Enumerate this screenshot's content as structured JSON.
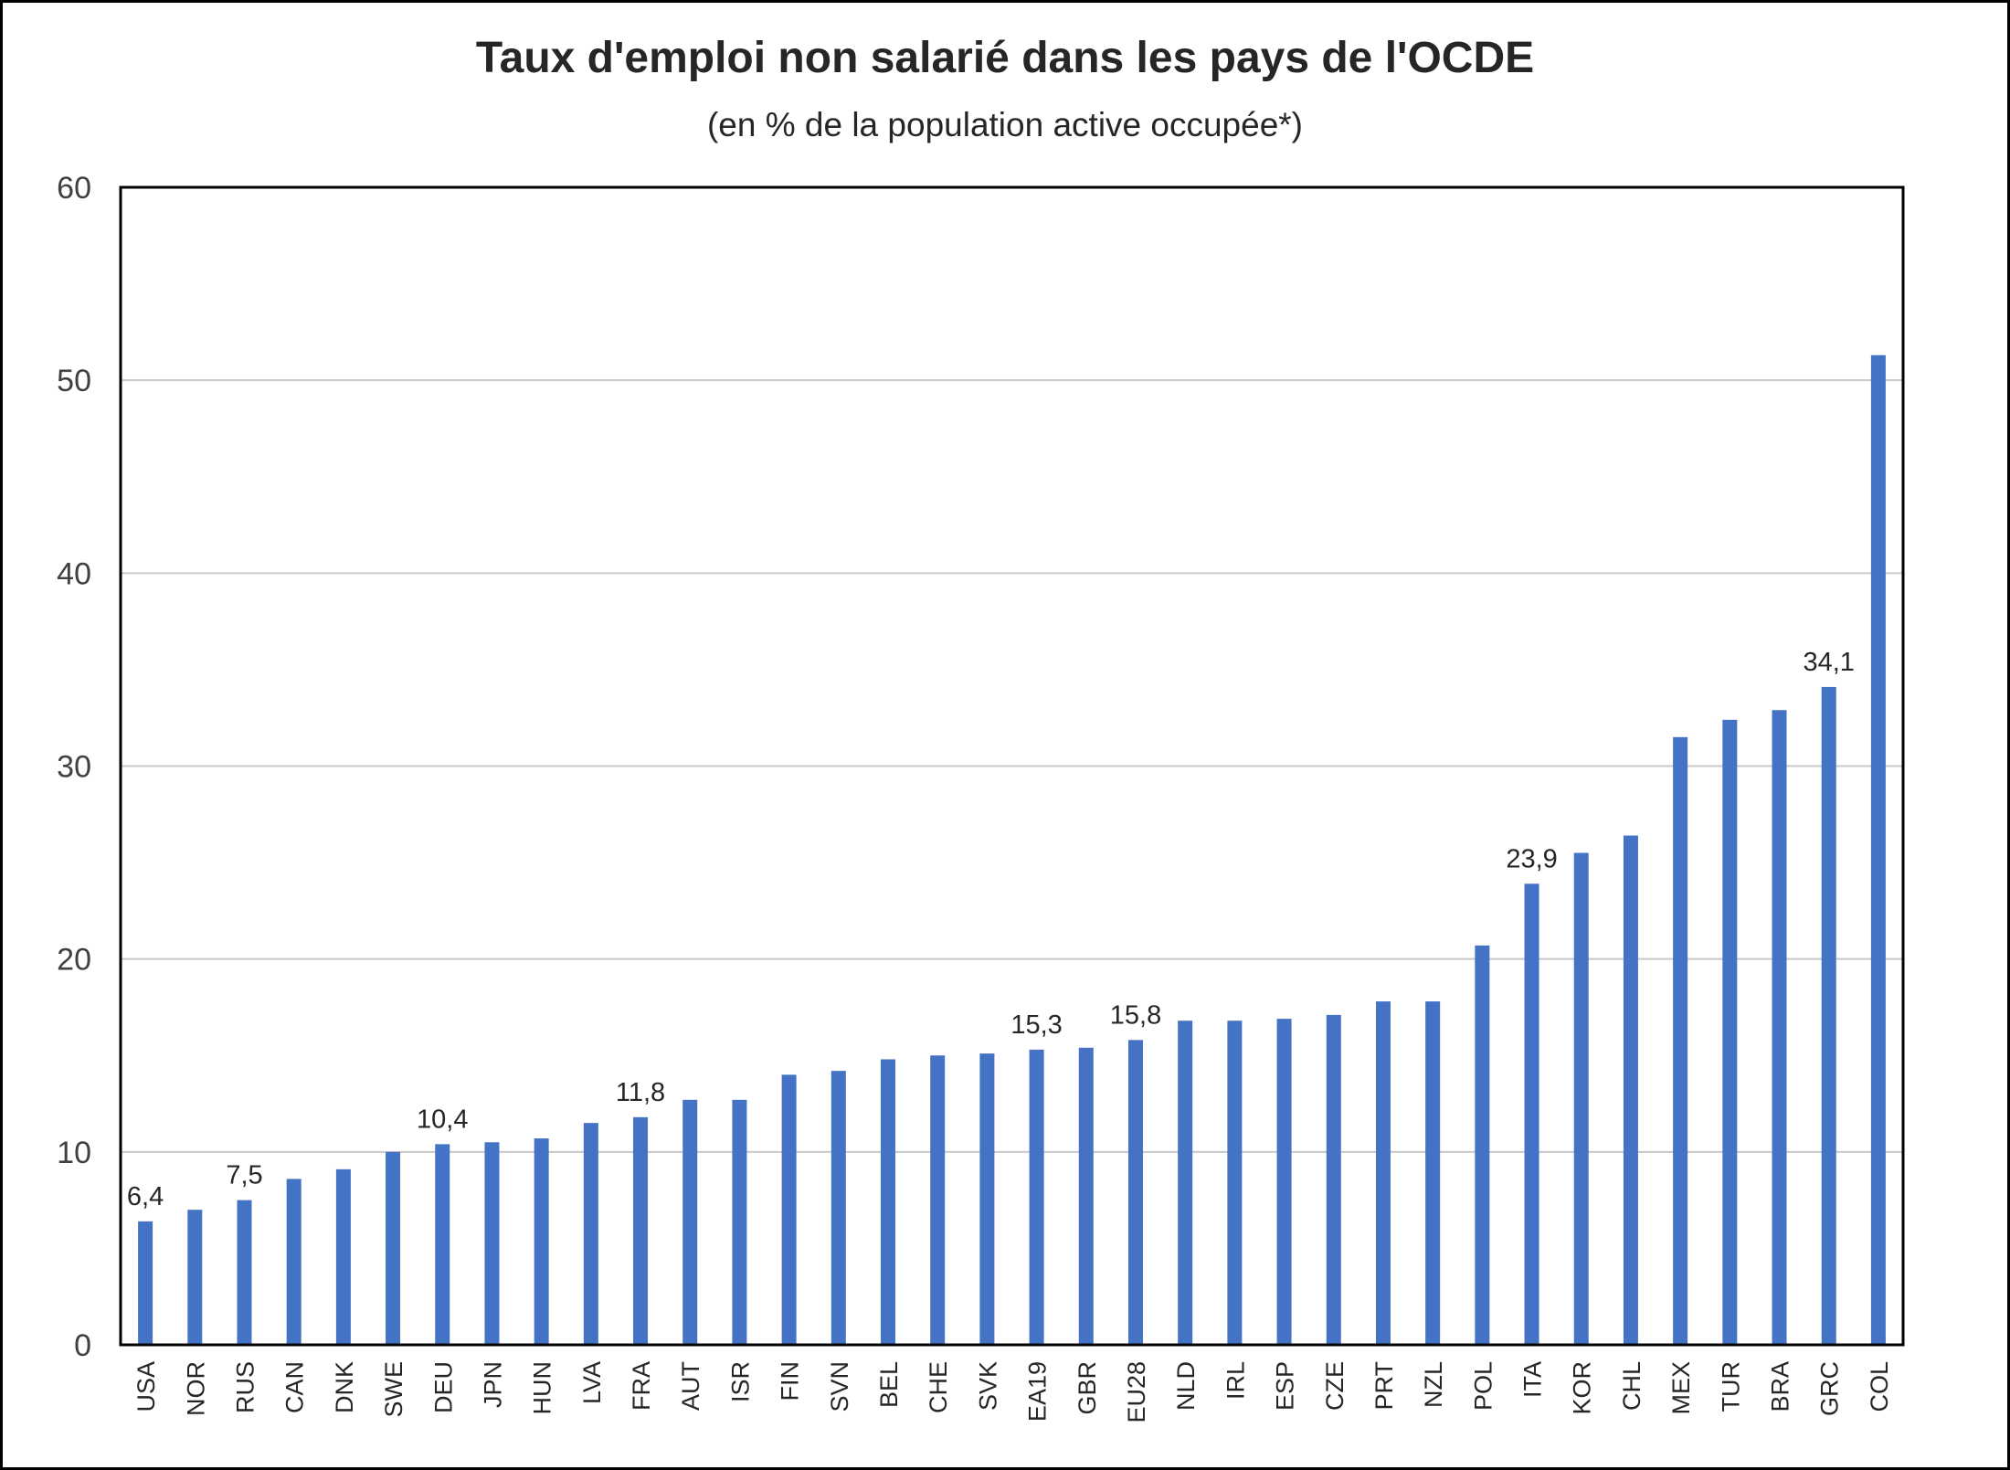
{
  "chart_data": {
    "type": "bar",
    "title": "Taux d'emploi non salarié dans les pays de l'OCDE",
    "subtitle": "(en % de la population active occupée*)",
    "xlabel": "",
    "ylabel": "",
    "ylim": [
      0,
      60
    ],
    "yticks": [
      "0",
      "10",
      "20",
      "30",
      "40",
      "50",
      "60"
    ],
    "grid": true,
    "bar_color": "#4472C4",
    "categories": [
      "USA",
      "NOR",
      "RUS",
      "CAN",
      "DNK",
      "SWE",
      "DEU",
      "JPN",
      "HUN",
      "LVA",
      "FRA",
      "AUT",
      "ISR",
      "FIN",
      "SVN",
      "BEL",
      "CHE",
      "SVK",
      "EA19",
      "GBR",
      "EU28",
      "NLD",
      "IRL",
      "ESP",
      "CZE",
      "PRT",
      "NZL",
      "POL",
      "ITA",
      "KOR",
      "CHL",
      "MEX",
      "TUR",
      "BRA",
      "GRC",
      "COL"
    ],
    "values": [
      6.4,
      7.0,
      7.5,
      8.6,
      9.1,
      10.0,
      10.4,
      10.5,
      10.7,
      11.5,
      11.8,
      12.7,
      12.7,
      14.0,
      14.2,
      14.8,
      15.0,
      15.1,
      15.3,
      15.4,
      15.8,
      16.8,
      16.8,
      16.9,
      17.1,
      17.8,
      17.8,
      20.7,
      23.9,
      25.5,
      26.4,
      31.5,
      32.4,
      32.9,
      34.1,
      51.3
    ],
    "data_labels": [
      {
        "category": "USA",
        "text": "6,4"
      },
      {
        "category": "RUS",
        "text": "7,5"
      },
      {
        "category": "DEU",
        "text": "10,4"
      },
      {
        "category": "FRA",
        "text": "11,8"
      },
      {
        "category": "EA19",
        "text": "15,3"
      },
      {
        "category": "EU28",
        "text": "15,8"
      },
      {
        "category": "ITA",
        "text": "23,9"
      },
      {
        "category": "GRC",
        "text": "34,1"
      }
    ]
  }
}
